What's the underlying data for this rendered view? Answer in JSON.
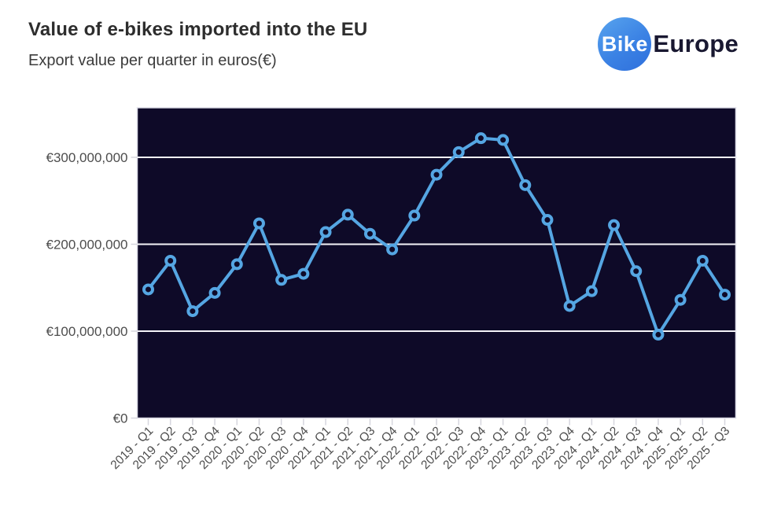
{
  "header": {
    "title": "Value of e-bikes imported into the EU",
    "subtitle": "Export value per quarter in euros(€)"
  },
  "logo": {
    "bike_label": "Bike",
    "europe_label": "Europe",
    "circle_color": "#3b82e4",
    "text_color": "#191831"
  },
  "chart_data": {
    "type": "line",
    "title": "Value of e-bikes imported into the EU",
    "subtitle": "Export value per quarter in euros(€)",
    "unit": "EUR",
    "categories": [
      "2019 - Q1",
      "2019 - Q2",
      "2019 - Q3",
      "2019 - Q4",
      "2020 - Q1",
      "2020 - Q2",
      "2020 - Q3",
      "2020 - Q4",
      "2021 - Q1",
      "2021 - Q2",
      "2021 - Q3",
      "2021 - Q4",
      "2022 - Q1",
      "2022 - Q2",
      "2022 - Q3",
      "2022 - Q4",
      "2023 - Q1",
      "2023 - Q2",
      "2023 - Q3",
      "2023 - Q4",
      "2024 - Q1",
      "2024 - Q2",
      "2024 - Q3",
      "2024 - Q4",
      "2025 - Q1",
      "2025 - Q2",
      "2025 - Q3"
    ],
    "values_eur_millions": [
      148,
      181,
      123,
      144,
      177,
      224,
      159,
      166,
      214,
      234,
      212,
      194,
      233,
      280,
      306,
      322,
      320,
      268,
      228,
      129,
      146,
      222,
      169,
      96,
      136,
      181,
      142
    ],
    "y_ticks": [
      {
        "value": 0,
        "label": "€0"
      },
      {
        "value": 100,
        "label": "€100,000,000"
      },
      {
        "value": 200,
        "label": "€200,000,000"
      },
      {
        "value": 300,
        "label": "€300,000,000"
      }
    ],
    "ylim_millions": [
      0,
      357
    ],
    "grid": true,
    "legend": "none",
    "colors": {
      "line": "#55a6e3",
      "marker_fill": "#0e0a28",
      "plot_background": "#0e0a28",
      "gridline": "#f4f4f8",
      "plot_border": "#dedee8",
      "tick": "#d6d6de",
      "axis_text": "#4d4d4d"
    }
  }
}
